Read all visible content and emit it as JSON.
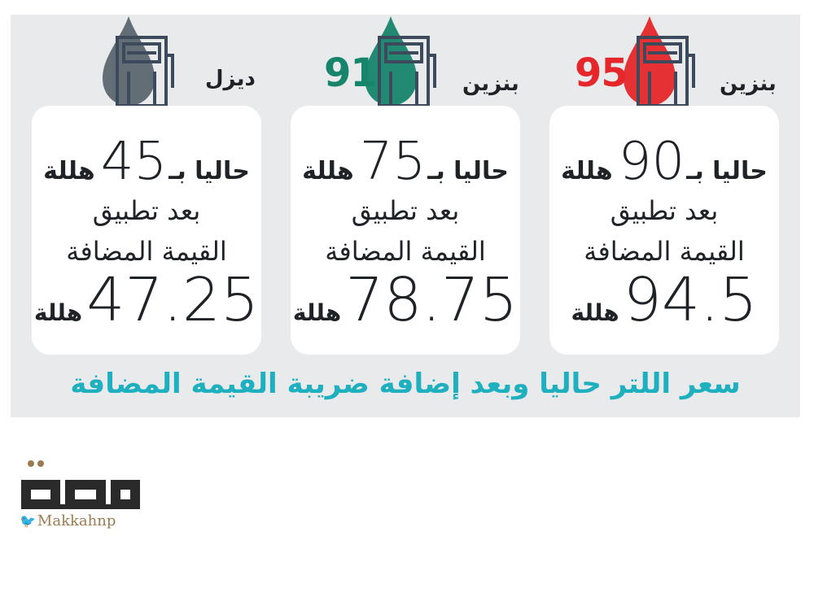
{
  "cards": [
    {
      "fuel": "بنزين",
      "octane": "95",
      "octane_color": "#e5262a",
      "drop_color": "#e5262a",
      "current_prefix": "حاليا بـ",
      "current_value": "90",
      "current_unit": "هللة",
      "after_line1": "بعد تطبيق",
      "after_line2": "القيمة المضافة",
      "after_value": "94.5",
      "after_unit": "هللة"
    },
    {
      "fuel": "بنزين",
      "octane": "91",
      "octane_color": "#17856b",
      "drop_color": "#17856b",
      "current_prefix": "حاليا بـ",
      "current_value": "75",
      "current_unit": "هللة",
      "after_line1": "بعد تطبيق",
      "after_line2": "القيمة المضافة",
      "after_value": "78.75",
      "after_unit": "هللة"
    },
    {
      "fuel": "ديزل",
      "octane": "",
      "octane_color": "#5b6670",
      "drop_color": "#5b6670",
      "current_prefix": "حاليا بـ",
      "current_value": "45",
      "current_unit": "هللة",
      "after_line1": "بعد تطبيق",
      "after_line2": "القيمة المضافة",
      "after_value": "47.25",
      "after_unit": "هللة"
    }
  ],
  "footer_title": "سعر اللتر حاليا وبعد إضافة ضريبة القيمة المضافة",
  "brand": {
    "logo_text": "مكة",
    "handle": "Makkahnp",
    "twitter_icon": "twitter-bird-icon"
  },
  "colors": {
    "panel_bg": "#e9eaec",
    "footer_title": "#1fb0bf",
    "pump_stroke": "#3c4a5c"
  }
}
